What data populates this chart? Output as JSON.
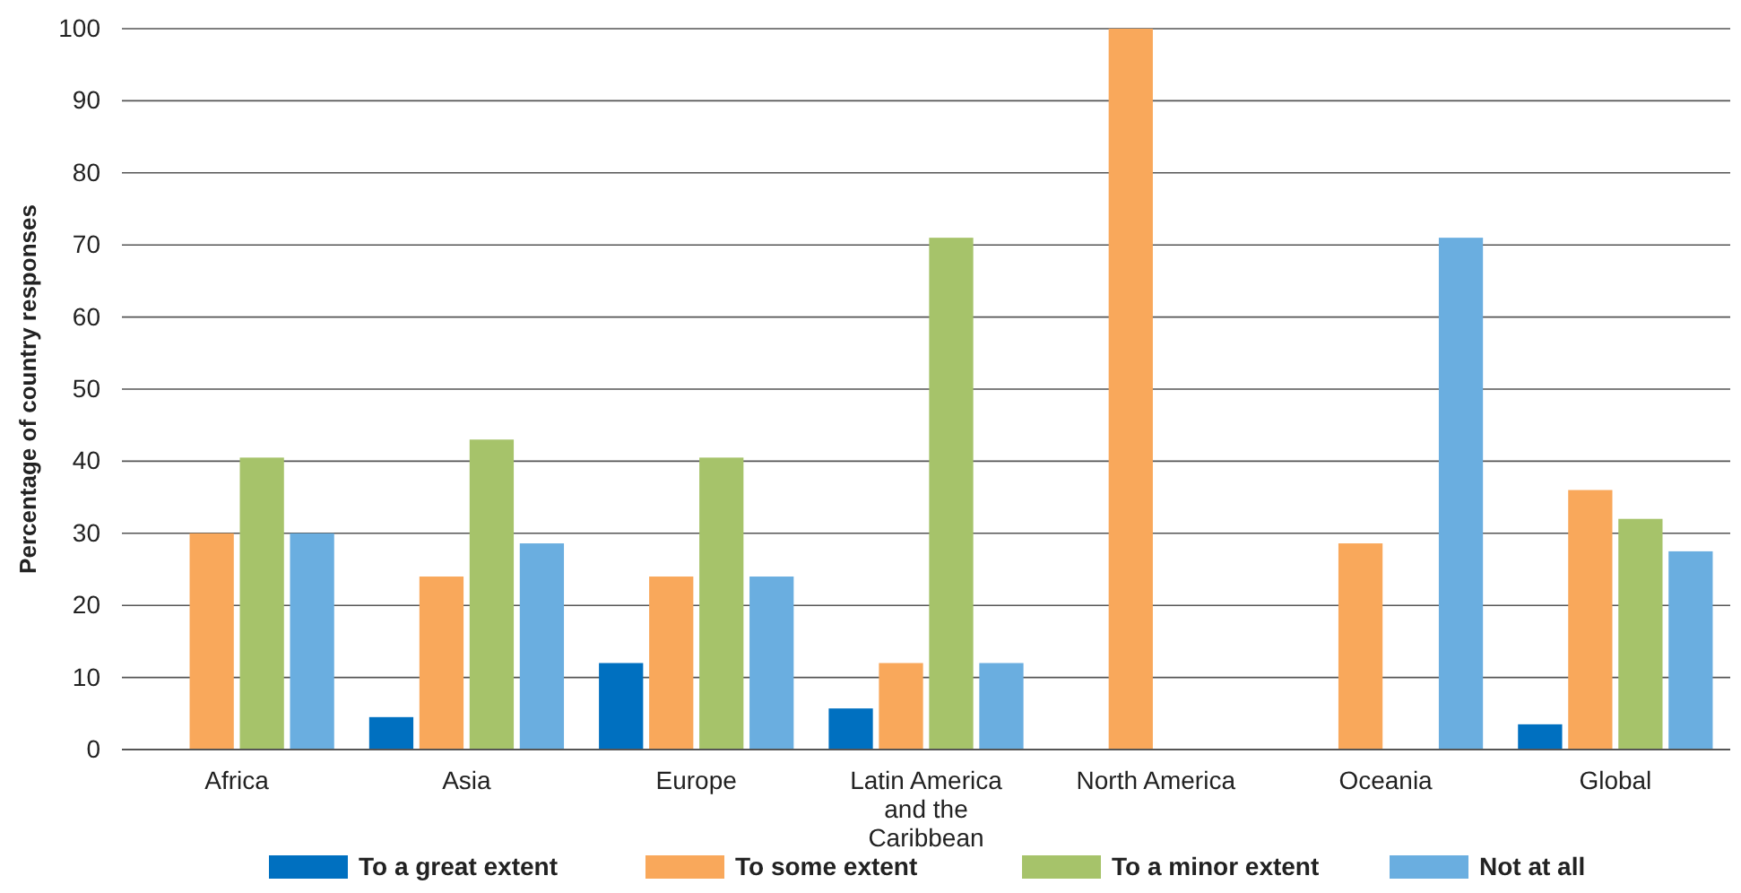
{
  "chart_data": {
    "type": "bar",
    "ylabel": "Percentage of country responses",
    "categories": [
      "Africa",
      "Asia",
      "Europe",
      "Latin America and the Caribbean",
      "North America",
      "Oceania",
      "Global"
    ],
    "series": [
      {
        "name": "To a great extent",
        "color": "#0070c0",
        "values": [
          0,
          4.5,
          12,
          5.7,
          0,
          0,
          3.5
        ]
      },
      {
        "name": "To some extent",
        "color": "#f9a85b",
        "values": [
          30,
          24,
          24,
          12,
          100,
          28.6,
          36
        ]
      },
      {
        "name": "To a minor extent",
        "color": "#a6c36a",
        "values": [
          40.5,
          43,
          40.5,
          71,
          0,
          0,
          32
        ]
      },
      {
        "name": "Not at all",
        "color": "#6aaee0",
        "values": [
          30,
          28.6,
          24,
          12,
          0,
          71,
          27.5
        ]
      }
    ],
    "ylim": [
      0,
      100
    ],
    "yticks": [
      0,
      10,
      20,
      30,
      40,
      50,
      60,
      70,
      80,
      90,
      100
    ],
    "grid": "y",
    "legend": "bottom"
  }
}
